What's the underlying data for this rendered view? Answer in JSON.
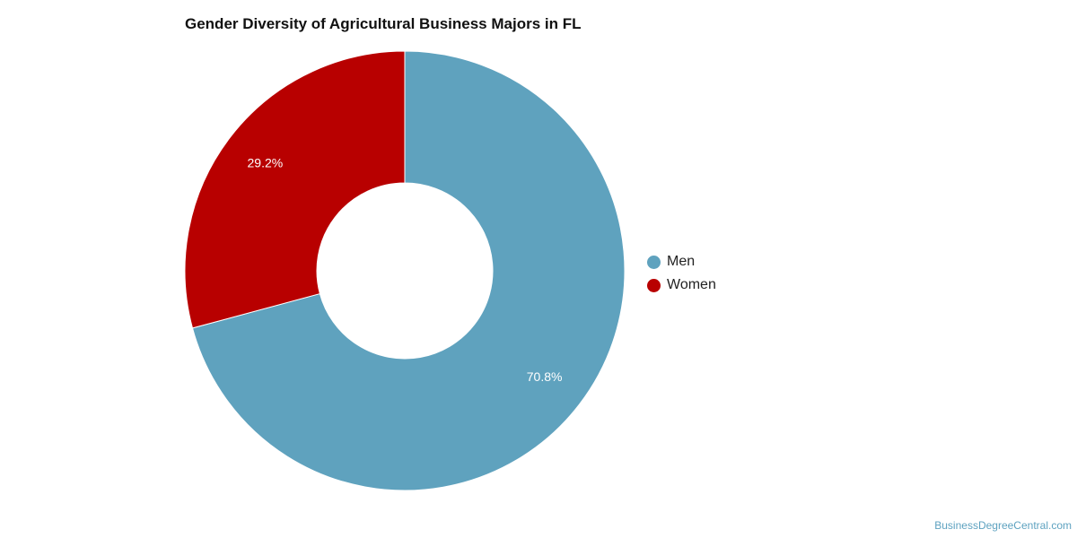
{
  "chart_data": {
    "type": "pie",
    "title": "Gender Diversity of Agricultural Business Majors in FL",
    "donut": true,
    "legend_position": "right",
    "slices": [
      {
        "label": "Men",
        "value": 70.8,
        "display": "70.8%",
        "color": "#5fa2be"
      },
      {
        "label": "Women",
        "value": 29.2,
        "display": "29.2%",
        "color": "#b80000"
      }
    ]
  },
  "watermark": "BusinessDegreeCentral.com"
}
